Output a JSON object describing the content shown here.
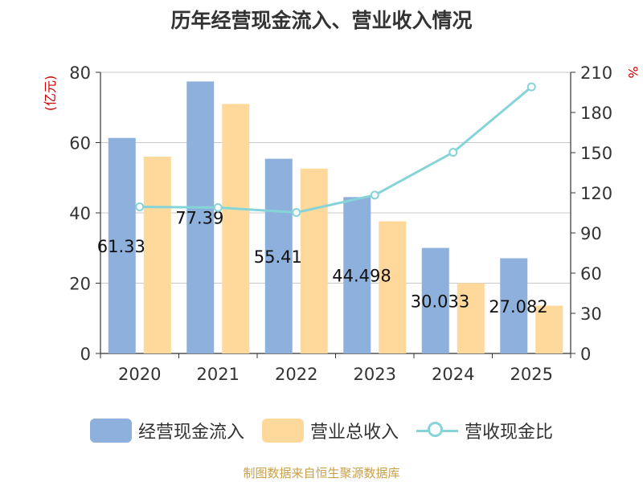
{
  "title": "历年经营现金流入、营业收入情况",
  "source": "制图数据来自恒生聚源数据库",
  "colors": {
    "cash_inflow": "#8eb0dc",
    "revenue": "#ffd99b",
    "ratio": "#86d4d7",
    "axis_unit": "#cc0000",
    "axis": "#333333",
    "grid": "#c8c8c8"
  },
  "chart_data": {
    "type": "bar",
    "categories": [
      "2020",
      "2021",
      "2022",
      "2023",
      "2024",
      "2025"
    ],
    "y_left": {
      "label": "(亿元)",
      "ylim": [
        0,
        80
      ],
      "ticks": [
        0,
        20,
        40,
        60,
        80
      ]
    },
    "y_right": {
      "label": "%",
      "ylim": [
        0,
        210
      ],
      "ticks": [
        0,
        30,
        60,
        90,
        120,
        150,
        180,
        210
      ]
    },
    "series": [
      {
        "name": "经营现金流入",
        "type": "bar",
        "axis": "left",
        "values": [
          61.33,
          77.39,
          55.41,
          44.498,
          30.033,
          27.082
        ],
        "data_labels": [
          "61.33",
          "77.39",
          "55.41",
          "44.498",
          "30.033",
          "27.082"
        ]
      },
      {
        "name": "营业总收入",
        "type": "bar",
        "axis": "left",
        "values": [
          56.0,
          71.0,
          52.6,
          37.6,
          20.0,
          13.6
        ]
      },
      {
        "name": "营收现金比",
        "type": "line",
        "axis": "right",
        "values": [
          109.5,
          109.0,
          105.3,
          118.3,
          150.2,
          199.1
        ]
      }
    ],
    "grid": true,
    "legend_position": "bottom"
  }
}
